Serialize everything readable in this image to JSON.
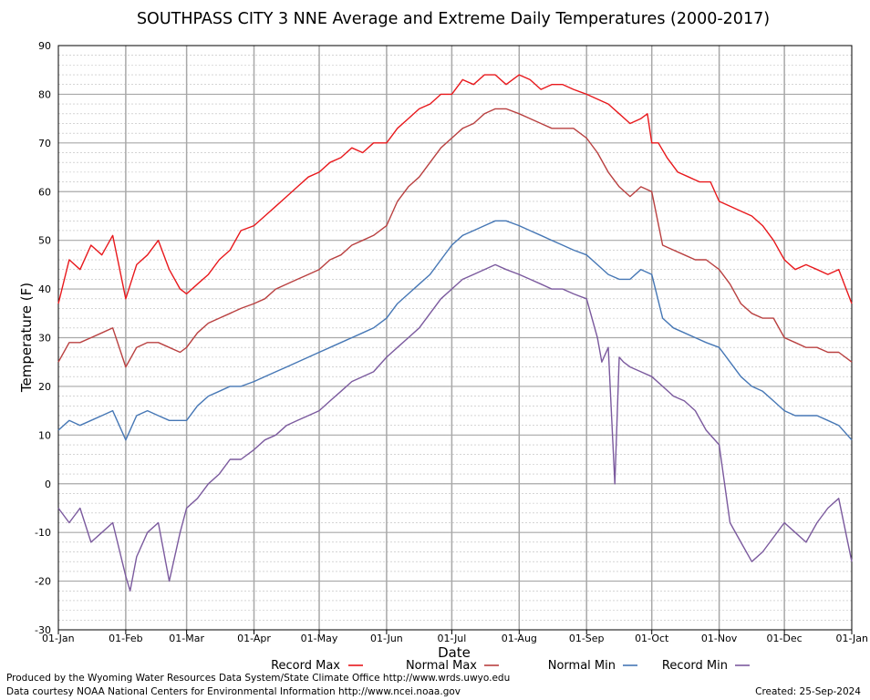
{
  "chart_data": {
    "type": "line",
    "title": "SOUTHPASS CITY 3 NNE Average and Extreme Daily Temperatures (2000-2017)",
    "xlabel": "Date",
    "ylabel": "Temperature (F)",
    "ylim": [
      -30,
      90
    ],
    "yticks": [
      "90",
      "80",
      "70",
      "60",
      "50",
      "40",
      "30",
      "20",
      "10",
      "0",
      "-10",
      "-20",
      "-30"
    ],
    "xticks": [
      "01-Jan",
      "01-Feb",
      "01-Mar",
      "01-Apr",
      "01-May",
      "01-Jun",
      "01-Jul",
      "01-Aug",
      "01-Sep",
      "01-Oct",
      "01-Nov",
      "01-Dec",
      "01-Jan"
    ],
    "x_tick_day": [
      0,
      31,
      59,
      90,
      120,
      151,
      181,
      212,
      243,
      273,
      304,
      334,
      365
    ],
    "grid": true,
    "legend_placement": "bottom",
    "series": [
      {
        "name": "Record Max",
        "color": "#e8181c",
        "x": [
          0,
          5,
          10,
          15,
          20,
          25,
          31,
          36,
          41,
          46,
          51,
          56,
          59,
          64,
          69,
          74,
          79,
          84,
          90,
          95,
          100,
          105,
          110,
          115,
          120,
          125,
          130,
          135,
          140,
          145,
          151,
          156,
          161,
          166,
          171,
          176,
          181,
          186,
          191,
          196,
          201,
          206,
          212,
          217,
          222,
          227,
          232,
          237,
          243,
          248,
          253,
          258,
          263,
          268,
          271,
          273,
          276,
          280,
          285,
          290,
          295,
          300,
          304,
          309,
          314,
          319,
          324,
          329,
          334,
          339,
          344,
          349,
          354,
          359,
          365
        ],
        "y": [
          37,
          46,
          44,
          49,
          47,
          51,
          38,
          45,
          47,
          50,
          44,
          40,
          39,
          41,
          43,
          46,
          48,
          52,
          53,
          55,
          57,
          59,
          61,
          63,
          64,
          66,
          67,
          69,
          68,
          70,
          70,
          73,
          75,
          77,
          78,
          80,
          80,
          83,
          82,
          84,
          84,
          82,
          84,
          83,
          81,
          82,
          82,
          81,
          80,
          79,
          78,
          76,
          74,
          75,
          76,
          70,
          70,
          67,
          64,
          63,
          62,
          62,
          58,
          57,
          56,
          55,
          53,
          50,
          46,
          44,
          45,
          44,
          43,
          44,
          37
        ]
      },
      {
        "name": "Normal Max",
        "color": "#b94040",
        "x": [
          0,
          5,
          10,
          15,
          20,
          25,
          31,
          36,
          41,
          46,
          51,
          56,
          59,
          64,
          69,
          74,
          79,
          84,
          90,
          95,
          100,
          105,
          110,
          115,
          120,
          125,
          130,
          135,
          140,
          145,
          151,
          156,
          161,
          166,
          171,
          176,
          181,
          186,
          191,
          196,
          201,
          206,
          212,
          217,
          222,
          227,
          232,
          237,
          243,
          248,
          253,
          258,
          263,
          268,
          273,
          278,
          283,
          288,
          293,
          298,
          304,
          309,
          314,
          319,
          324,
          329,
          334,
          339,
          344,
          349,
          354,
          359,
          365
        ],
        "y": [
          25,
          29,
          29,
          30,
          31,
          32,
          24,
          28,
          29,
          29,
          28,
          27,
          28,
          31,
          33,
          34,
          35,
          36,
          37,
          38,
          40,
          41,
          42,
          43,
          44,
          46,
          47,
          49,
          50,
          51,
          53,
          58,
          61,
          63,
          66,
          69,
          71,
          73,
          74,
          76,
          77,
          77,
          76,
          75,
          74,
          73,
          73,
          73,
          71,
          68,
          64,
          61,
          59,
          61,
          60,
          49,
          48,
          47,
          46,
          46,
          44,
          41,
          37,
          35,
          34,
          34,
          30,
          29,
          28,
          28,
          27,
          27,
          25
        ]
      },
      {
        "name": "Normal Min",
        "color": "#4677b5",
        "x": [
          0,
          5,
          10,
          15,
          20,
          25,
          31,
          36,
          41,
          46,
          51,
          56,
          59,
          64,
          69,
          74,
          79,
          84,
          90,
          95,
          100,
          105,
          110,
          115,
          120,
          125,
          130,
          135,
          140,
          145,
          151,
          156,
          161,
          166,
          171,
          176,
          181,
          186,
          191,
          196,
          201,
          206,
          212,
          217,
          222,
          227,
          232,
          237,
          243,
          248,
          253,
          258,
          263,
          268,
          273,
          278,
          283,
          288,
          293,
          298,
          304,
          309,
          314,
          319,
          324,
          329,
          334,
          339,
          344,
          349,
          354,
          359,
          365
        ],
        "y": [
          11,
          13,
          12,
          13,
          14,
          15,
          9,
          14,
          15,
          14,
          13,
          13,
          13,
          16,
          18,
          19,
          20,
          20,
          21,
          22,
          23,
          24,
          25,
          26,
          27,
          28,
          29,
          30,
          31,
          32,
          34,
          37,
          39,
          41,
          43,
          46,
          49,
          51,
          52,
          53,
          54,
          54,
          53,
          52,
          51,
          50,
          49,
          48,
          47,
          45,
          43,
          42,
          42,
          44,
          43,
          34,
          32,
          31,
          30,
          29,
          28,
          25,
          22,
          20,
          19,
          17,
          15,
          14,
          14,
          14,
          13,
          12,
          9
        ]
      },
      {
        "name": "Record Min",
        "color": "#7b5a9e",
        "x": [
          0,
          5,
          10,
          15,
          20,
          25,
          31,
          33,
          36,
          41,
          46,
          51,
          56,
          59,
          64,
          69,
          74,
          79,
          84,
          90,
          95,
          100,
          105,
          110,
          115,
          120,
          125,
          130,
          135,
          140,
          145,
          151,
          156,
          161,
          166,
          171,
          176,
          181,
          186,
          191,
          196,
          201,
          206,
          212,
          217,
          222,
          227,
          232,
          237,
          243,
          248,
          250,
          253,
          256,
          258,
          260,
          263,
          268,
          273,
          278,
          283,
          288,
          293,
          298,
          304,
          309,
          314,
          319,
          324,
          329,
          334,
          339,
          344,
          349,
          354,
          359,
          365
        ],
        "y": [
          -5,
          -8,
          -5,
          -12,
          -10,
          -8,
          -19,
          -22,
          -15,
          -10,
          -8,
          -20,
          -10,
          -5,
          -3,
          0,
          2,
          5,
          5,
          7,
          9,
          10,
          12,
          13,
          14,
          15,
          17,
          19,
          21,
          22,
          23,
          26,
          28,
          30,
          32,
          35,
          38,
          40,
          42,
          43,
          44,
          45,
          44,
          43,
          42,
          41,
          40,
          40,
          39,
          38,
          30,
          25,
          28,
          0,
          26,
          25,
          24,
          23,
          22,
          20,
          18,
          17,
          15,
          11,
          8,
          -8,
          -12,
          -16,
          -14,
          -11,
          -8,
          -10,
          -12,
          -8,
          -5,
          -3,
          -16
        ]
      }
    ]
  },
  "footer": {
    "produced_by": "Produced by the Wyoming Water Resources Data System/State Climate Office http://www.wrds.uwyo.edu",
    "data_courtesy": "Data courtesy NOAA National Centers for Environmental Information http://www.ncei.noaa.gov",
    "created": "Created:  25-Sep-2024"
  }
}
